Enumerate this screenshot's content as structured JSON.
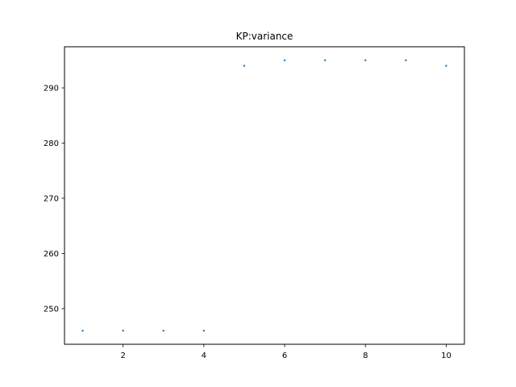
{
  "chart_data": {
    "type": "scatter",
    "title": "KP:variance",
    "xlabel": "",
    "ylabel": "",
    "x": [
      1,
      2,
      3,
      4,
      5,
      6,
      7,
      8,
      9,
      10
    ],
    "series": [
      {
        "values": [
          246,
          246,
          246,
          246,
          294,
          295,
          295,
          295,
          295,
          294
        ],
        "color": "#1f77b4"
      }
    ],
    "xlim": [
      0.55,
      10.45
    ],
    "ylim": [
      243.55,
      297.45
    ],
    "xticks": [
      2,
      4,
      6,
      8,
      10
    ],
    "xtick_labels": [
      "2",
      "4",
      "6",
      "8",
      "10"
    ],
    "yticks": [
      250,
      260,
      270,
      280,
      290
    ],
    "ytick_labels": [
      "250",
      "260",
      "270",
      "280",
      "290"
    ],
    "grid": false,
    "legend": "none"
  }
}
